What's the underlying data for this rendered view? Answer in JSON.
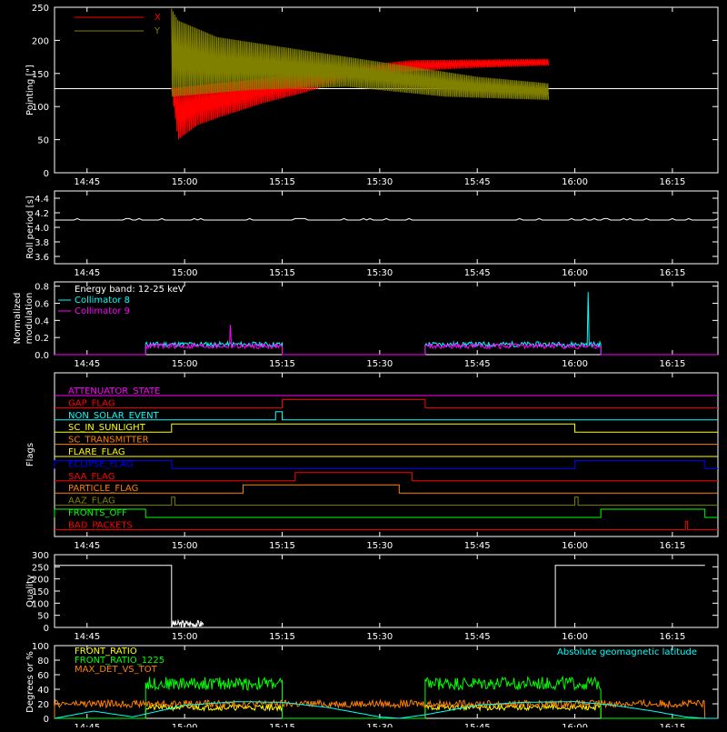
{
  "chart_data": [
    {
      "id": "pointing",
      "type": "line",
      "ylabel": "Pointing [\"]",
      "yticks": [
        "0",
        "50",
        "100",
        "150",
        "200",
        "250"
      ],
      "ylim": [
        0,
        250
      ],
      "xlim_minutes_after_1440": [
        0,
        100
      ],
      "x_tick_labels": [
        "14:45",
        "15:00",
        "15:15",
        "15:30",
        "15:45",
        "16:00",
        "16:15"
      ],
      "legend_position": "top-left",
      "series": [
        {
          "name": "X",
          "color": "#ff0000",
          "points": [
            [
              "14:58",
              128
            ],
            [
              "14:59",
              50
            ],
            [
              "15:02",
              72
            ],
            [
              "15:06",
              86
            ],
            [
              "15:12",
              105
            ],
            [
              "15:18",
              120
            ],
            [
              "15:25",
              140
            ],
            [
              "15:33",
              152
            ],
            [
              "15:43",
              158
            ],
            [
              "15:56",
              162
            ]
          ],
          "oscillation_upper": [
            [
              "14:58",
              128
            ],
            [
              "15:10",
              140
            ],
            [
              "15:25",
              160
            ],
            [
              "15:35",
              170
            ],
            [
              "15:56",
              172
            ]
          ]
        },
        {
          "name": "Y",
          "color": "#808000",
          "points": [
            [
              "14:58",
              248
            ],
            [
              "14:59",
              230
            ],
            [
              "15:05",
              205
            ],
            [
              "15:15",
              190
            ],
            [
              "15:25",
              175
            ],
            [
              "15:35",
              160
            ],
            [
              "15:45",
              145
            ],
            [
              "15:56",
              135
            ]
          ],
          "oscillation_lower": [
            [
              "14:58",
              115
            ],
            [
              "15:10",
              125
            ],
            [
              "15:25",
              130
            ],
            [
              "15:40",
              115
            ],
            [
              "15:56",
              110
            ]
          ]
        },
        {
          "name": "",
          "color": "#ffffff",
          "constant": 127
        }
      ]
    },
    {
      "id": "roll",
      "type": "line",
      "ylabel": "Roll period [s]",
      "yticks": [
        "3.6",
        "3.8",
        "4.0",
        "4.2",
        "4.4"
      ],
      "ylim": [
        3.5,
        4.5
      ],
      "x_tick_labels": [
        "14:45",
        "15:00",
        "15:15",
        "15:30",
        "15:45",
        "16:00",
        "16:15"
      ],
      "series": [
        {
          "name": "",
          "color": "#ffffff",
          "constant": 4.1
        }
      ]
    },
    {
      "id": "modulation",
      "type": "line",
      "ylabel": "Normalized modulation",
      "yticks": [
        "0.0",
        "0.2",
        "0.4",
        "0.6",
        "0.8"
      ],
      "ylim": [
        0,
        0.85
      ],
      "x_tick_labels": [
        "14:45",
        "15:00",
        "15:15",
        "15:30",
        "15:45",
        "16:00",
        "16:15"
      ],
      "annotation": "Energy band: 12-25 keV",
      "series": [
        {
          "name": "Collimator 8",
          "color": "#00ffff",
          "segments": [
            [
              "14:54",
              "15:15"
            ],
            [
              "15:37",
              "16:04"
            ]
          ],
          "level": 0.09,
          "spike": [
            "16:02",
            0.73
          ]
        },
        {
          "name": "Collimator 9",
          "color": "#ff00ff",
          "segments": [
            [
              "14:54",
              "15:15"
            ],
            [
              "15:37",
              "16:04"
            ]
          ],
          "level": 0.07,
          "spike": [
            "15:07",
            0.35
          ]
        }
      ]
    },
    {
      "id": "flags",
      "type": "line",
      "ylabel": "Flags",
      "x_tick_labels": [
        "14:45",
        "15:00",
        "15:15",
        "15:30",
        "15:45",
        "16:00",
        "16:15"
      ],
      "flags": [
        {
          "name": "ATTENUATOR_STATE",
          "color": "#ff00ff",
          "on": []
        },
        {
          "name": "GAP_FLAG",
          "color": "#ff0000",
          "on": [
            [
              "15:15",
              "15:37"
            ]
          ]
        },
        {
          "name": "NON_SOLAR_EVENT",
          "color": "#00ffff",
          "on": [
            [
              "15:14",
              "15:15"
            ]
          ]
        },
        {
          "name": "SC_IN_SUNLIGHT",
          "color": "#ffff00",
          "on": [
            [
              "14:58",
              "16:00"
            ]
          ]
        },
        {
          "name": "SC_TRANSMITTER",
          "color": "#ff8000",
          "on": []
        },
        {
          "name": "FLARE_FLAG",
          "color": "#ffff00",
          "on": []
        },
        {
          "name": "ECLIPSE_FLAG",
          "color": "#0000ff",
          "on": [
            [
              "14:40",
              "14:58"
            ],
            [
              "16:00",
              "16:20"
            ]
          ]
        },
        {
          "name": "SAA_FLAG",
          "color": "#ff0000",
          "on": [
            [
              "15:17",
              "15:35"
            ]
          ]
        },
        {
          "name": "PARTICLE_FLAG",
          "color": "#ff8000",
          "on": [
            [
              "15:09",
              "15:33"
            ]
          ]
        },
        {
          "name": "AAZ_FLAG",
          "color": "#808000",
          "on": [
            [
              "14:58",
              "14:58.5"
            ],
            [
              "16:00",
              "16:00.5"
            ]
          ]
        },
        {
          "name": "FRONTS_OFF",
          "color": "#00ff00",
          "on": [
            [
              "14:40",
              "14:54"
            ],
            [
              "16:04",
              "16:20"
            ]
          ]
        },
        {
          "name": "BAD_PACKETS",
          "color": "#ff0000",
          "on": [
            [
              "16:17",
              "16:17.3"
            ]
          ]
        }
      ]
    },
    {
      "id": "quality",
      "type": "line",
      "ylabel": "Quality",
      "yticks": [
        "0",
        "50",
        "100",
        "150",
        "200",
        "250",
        "300"
      ],
      "ylim": [
        0,
        300
      ],
      "x_tick_labels": [
        "14:45",
        "15:00",
        "15:15",
        "15:30",
        "15:45",
        "16:00",
        "16:15"
      ],
      "series": [
        {
          "name": "",
          "color": "#ffffff",
          "steps": [
            [
              "14:40",
              256
            ],
            [
              "14:58",
              0
            ],
            [
              "15:57",
              256
            ],
            [
              "16:20",
              256
            ]
          ],
          "noise": [
            [
              "14:58",
              "15:03",
              30
            ]
          ]
        }
      ]
    },
    {
      "id": "ratios",
      "type": "line",
      "ylabel": "Degrees or %",
      "yticks": [
        "0",
        "20",
        "40",
        "60",
        "80",
        "100"
      ],
      "ylim": [
        0,
        100
      ],
      "x_tick_labels": [
        "14:45",
        "15:00",
        "15:15",
        "15:30",
        "15:45",
        "16:00",
        "16:15"
      ],
      "series": [
        {
          "name": "FRONT_RATIO",
          "color": "#ffff00",
          "segments": [
            [
              "14:54",
              "15:15"
            ],
            [
              "15:37",
              "16:04"
            ]
          ],
          "level": 15,
          "spread": 8
        },
        {
          "name": "FRONT_RATIO_1225",
          "color": "#00ff00",
          "segments": [
            [
              "14:54",
              "15:15"
            ],
            [
              "15:37",
              "16:04"
            ]
          ],
          "level": 48,
          "spread": 18
        },
        {
          "name": "MAX_DET_VS_TOT",
          "color": "#ff8000",
          "segments": [
            [
              "14:40",
              "16:20"
            ]
          ],
          "level": 20,
          "spread": 10
        },
        {
          "name": "Absolute geomagnetic latitude",
          "color": "#00ffff",
          "curve": [
            [
              "14:40",
              0
            ],
            [
              "14:46",
              10
            ],
            [
              "14:52",
              2
            ],
            [
              "15:00",
              18
            ],
            [
              "15:08",
              23
            ],
            [
              "15:15",
              22
            ],
            [
              "15:22",
              15
            ],
            [
              "15:30",
              2
            ],
            [
              "15:33",
              0
            ],
            [
              "15:37",
              5
            ],
            [
              "15:45",
              18
            ],
            [
              "15:52",
              22
            ],
            [
              "16:00",
              23
            ],
            [
              "16:06",
              18
            ],
            [
              "16:12",
              10
            ],
            [
              "16:17",
              2
            ],
            [
              "16:20",
              0
            ]
          ]
        }
      ]
    }
  ]
}
